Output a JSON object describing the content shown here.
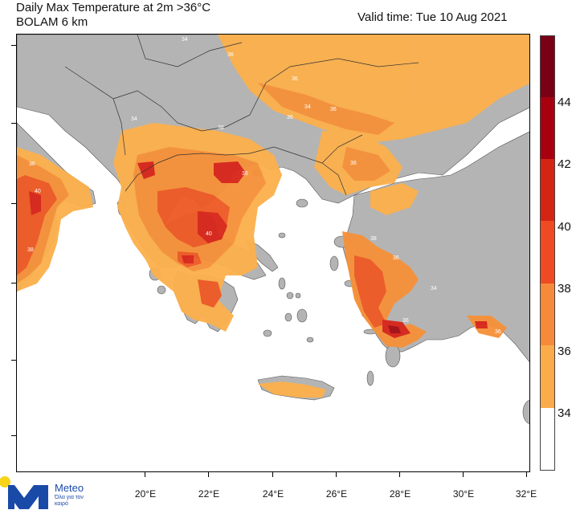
{
  "header": {
    "title": "Daily Max Temperature at 2m >36°C",
    "model": "BOLAM 6 km",
    "valid_time": "Valid time: Tue 10 Aug 2021"
  },
  "map": {
    "longitude_labels": [
      "20°E",
      "22°E",
      "24°E",
      "26°E",
      "28°E",
      "30°E",
      "32°E"
    ],
    "region_labels": [
      "34",
      "36",
      "36",
      "34",
      "38",
      "36",
      "40",
      "38",
      "40",
      "36",
      "36",
      "36",
      "34",
      "36",
      "34",
      "38",
      "36",
      "36",
      "34",
      "36"
    ]
  },
  "colorbar": {
    "labels": [
      "44",
      "42",
      "40",
      "38",
      "36",
      "34"
    ],
    "colors": [
      "#7a0015",
      "#a8000f",
      "#d42414",
      "#ef4a22",
      "#f78a3a",
      "#fbab4a",
      "#ffffff"
    ]
  },
  "colors": {
    "land": "#b4b4b4",
    "sea": "#ffffff",
    "t34": "#fbb04e",
    "t36": "#f6913a",
    "t38": "#ee5a25",
    "t40": "#d8261a",
    "t42": "#a50f15"
  },
  "logo": {
    "brand": "Meteo",
    "tagline": "Όλα για τον καιρό"
  }
}
